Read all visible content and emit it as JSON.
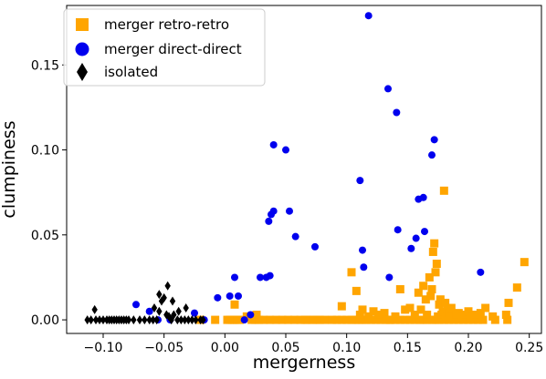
{
  "chart_data": {
    "type": "scatter",
    "xlabel": "mergerness",
    "ylabel": "clumpiness",
    "xlim": [
      -0.13,
      0.26
    ],
    "ylim": [
      -0.008,
      0.185
    ],
    "xticks": [
      -0.1,
      -0.05,
      0.0,
      0.05,
      0.1,
      0.15,
      0.2,
      0.25
    ],
    "xtick_labels": [
      "−0.10",
      "−0.05",
      "0.00",
      "0.05",
      "0.10",
      "0.15",
      "0.20",
      "0.25"
    ],
    "yticks": [
      0.0,
      0.05,
      0.1,
      0.15
    ],
    "ytick_labels": [
      "0.00",
      "0.05",
      "0.10",
      "0.15"
    ],
    "grid": false,
    "legend_position": "top-left",
    "series": [
      {
        "name": "merger retro-retro",
        "marker": "square",
        "color": "#ffa500",
        "points": [
          [
            -0.02,
            0.0
          ],
          [
            -0.008,
            0.0
          ],
          [
            0.002,
            0.0
          ],
          [
            0.004,
            0.0
          ],
          [
            0.006,
            0.0
          ],
          [
            0.008,
            0.0
          ],
          [
            0.01,
            0.0
          ],
          [
            0.012,
            0.0
          ],
          [
            0.018,
            0.002
          ],
          [
            0.022,
            0.0
          ],
          [
            0.025,
            0.0
          ],
          [
            0.028,
            0.0
          ],
          [
            0.032,
            0.0
          ],
          [
            0.037,
            0.0
          ],
          [
            0.042,
            0.0
          ],
          [
            0.047,
            0.0
          ],
          [
            0.052,
            0.0
          ],
          [
            0.057,
            0.0
          ],
          [
            0.062,
            0.0
          ],
          [
            0.068,
            0.0
          ],
          [
            0.072,
            0.0
          ],
          [
            0.075,
            0.0
          ],
          [
            0.078,
            0.0
          ],
          [
            0.082,
            0.0
          ],
          [
            0.088,
            0.0
          ],
          [
            0.092,
            0.0
          ],
          [
            0.096,
            0.0
          ],
          [
            0.1,
            0.0
          ],
          [
            0.104,
            0.0
          ],
          [
            0.107,
            0.0
          ],
          [
            0.11,
            0.0
          ],
          [
            0.113,
            0.0
          ],
          [
            0.116,
            0.0
          ],
          [
            0.12,
            0.0
          ],
          [
            0.124,
            0.0
          ],
          [
            0.128,
            0.0
          ],
          [
            0.132,
            0.0
          ],
          [
            0.136,
            0.0
          ],
          [
            0.14,
            0.0
          ],
          [
            0.144,
            0.0
          ],
          [
            0.148,
            0.0
          ],
          [
            0.152,
            0.0
          ],
          [
            0.156,
            0.0
          ],
          [
            0.16,
            0.0
          ],
          [
            0.163,
            0.0
          ],
          [
            0.166,
            0.0
          ],
          [
            0.17,
            0.0
          ],
          [
            0.173,
            0.0
          ],
          [
            0.176,
            0.0
          ],
          [
            0.18,
            0.0
          ],
          [
            0.184,
            0.0
          ],
          [
            0.188,
            0.0
          ],
          [
            0.192,
            0.0
          ],
          [
            0.196,
            0.0
          ],
          [
            0.2,
            0.0
          ],
          [
            0.204,
            0.0
          ],
          [
            0.208,
            0.0
          ],
          [
            0.212,
            0.0
          ],
          [
            0.222,
            0.0
          ],
          [
            0.232,
            0.0
          ],
          [
            0.008,
            0.009
          ],
          [
            0.026,
            0.003
          ],
          [
            0.066,
            0.0
          ],
          [
            0.096,
            0.008
          ],
          [
            0.104,
            0.028
          ],
          [
            0.108,
            0.017
          ],
          [
            0.111,
            0.003
          ],
          [
            0.113,
            0.006
          ],
          [
            0.118,
            0.002
          ],
          [
            0.122,
            0.005
          ],
          [
            0.126,
            0.003
          ],
          [
            0.131,
            0.004
          ],
          [
            0.135,
            0.0
          ],
          [
            0.14,
            0.002
          ],
          [
            0.144,
            0.018
          ],
          [
            0.148,
            0.006
          ],
          [
            0.152,
            0.007
          ],
          [
            0.156,
            0.003
          ],
          [
            0.159,
            0.016
          ],
          [
            0.161,
            0.006
          ],
          [
            0.163,
            0.02
          ],
          [
            0.165,
            0.012
          ],
          [
            0.166,
            0.003
          ],
          [
            0.168,
            0.025
          ],
          [
            0.169,
            0.014
          ],
          [
            0.17,
            0.018
          ],
          [
            0.171,
            0.04
          ],
          [
            0.172,
            0.045
          ],
          [
            0.173,
            0.028
          ],
          [
            0.174,
            0.033
          ],
          [
            0.175,
            0.002
          ],
          [
            0.176,
            0.009
          ],
          [
            0.177,
            0.012
          ],
          [
            0.178,
            0.003
          ],
          [
            0.179,
            0.005
          ],
          [
            0.18,
            0.076
          ],
          [
            0.181,
            0.01
          ],
          [
            0.182,
            0.002
          ],
          [
            0.183,
            0.006
          ],
          [
            0.184,
            0.004
          ],
          [
            0.186,
            0.007
          ],
          [
            0.188,
            0.002
          ],
          [
            0.19,
            0.003
          ],
          [
            0.192,
            0.004
          ],
          [
            0.195,
            0.002
          ],
          [
            0.198,
            0.003
          ],
          [
            0.2,
            0.005
          ],
          [
            0.203,
            0.002
          ],
          [
            0.206,
            0.003
          ],
          [
            0.21,
            0.004
          ],
          [
            0.214,
            0.007
          ],
          [
            0.22,
            0.002
          ],
          [
            0.231,
            0.003
          ],
          [
            0.233,
            0.01
          ],
          [
            0.24,
            0.019
          ],
          [
            0.246,
            0.034
          ]
        ]
      },
      {
        "name": "merger direct-direct",
        "marker": "circle",
        "color": "#0000ee",
        "points": [
          [
            -0.073,
            0.009
          ],
          [
            -0.062,
            0.005
          ],
          [
            -0.055,
            0.0
          ],
          [
            -0.045,
            0.0
          ],
          [
            -0.025,
            0.004
          ],
          [
            -0.017,
            0.0
          ],
          [
            -0.006,
            0.013
          ],
          [
            0.004,
            0.014
          ],
          [
            0.008,
            0.025
          ],
          [
            0.011,
            0.014
          ],
          [
            0.016,
            0.0
          ],
          [
            0.021,
            0.003
          ],
          [
            0.029,
            0.025
          ],
          [
            0.034,
            0.025
          ],
          [
            0.037,
            0.026
          ],
          [
            0.036,
            0.058
          ],
          [
            0.038,
            0.062
          ],
          [
            0.04,
            0.103
          ],
          [
            0.04,
            0.064
          ],
          [
            0.05,
            0.1
          ],
          [
            0.053,
            0.064
          ],
          [
            0.058,
            0.049
          ],
          [
            0.074,
            0.043
          ],
          [
            0.111,
            0.082
          ],
          [
            0.113,
            0.041
          ],
          [
            0.114,
            0.031
          ],
          [
            0.118,
            0.179
          ],
          [
            0.134,
            0.136
          ],
          [
            0.135,
            0.025
          ],
          [
            0.141,
            0.122
          ],
          [
            0.142,
            0.053
          ],
          [
            0.153,
            0.042
          ],
          [
            0.157,
            0.048
          ],
          [
            0.159,
            0.071
          ],
          [
            0.163,
            0.072
          ],
          [
            0.164,
            0.052
          ],
          [
            0.17,
            0.097
          ],
          [
            0.172,
            0.106
          ],
          [
            0.21,
            0.028
          ]
        ]
      },
      {
        "name": "isolated",
        "marker": "diamond",
        "color": "#000000",
        "points": [
          [
            -0.113,
            0.0
          ],
          [
            -0.11,
            0.0
          ],
          [
            -0.107,
            0.006
          ],
          [
            -0.106,
            0.0
          ],
          [
            -0.103,
            0.0
          ],
          [
            -0.1,
            0.0
          ],
          [
            -0.097,
            0.0
          ],
          [
            -0.095,
            0.0
          ],
          [
            -0.093,
            0.0
          ],
          [
            -0.091,
            0.0
          ],
          [
            -0.089,
            0.0
          ],
          [
            -0.087,
            0.0
          ],
          [
            -0.085,
            0.0
          ],
          [
            -0.083,
            0.0
          ],
          [
            -0.081,
            0.0
          ],
          [
            -0.079,
            0.0
          ],
          [
            -0.075,
            0.0
          ],
          [
            -0.07,
            0.0
          ],
          [
            -0.066,
            0.0
          ],
          [
            -0.062,
            0.0
          ],
          [
            -0.059,
            0.0
          ],
          [
            -0.056,
            0.0
          ],
          [
            -0.054,
            0.005
          ],
          [
            -0.052,
            0.011
          ],
          [
            -0.05,
            0.013
          ],
          [
            -0.048,
            0.003
          ],
          [
            -0.046,
            0.002
          ],
          [
            -0.044,
            0.0
          ],
          [
            -0.042,
            0.003
          ],
          [
            -0.039,
            0.0
          ],
          [
            -0.036,
            0.0
          ],
          [
            -0.033,
            0.0
          ],
          [
            -0.03,
            0.0
          ],
          [
            -0.027,
            0.0
          ],
          [
            -0.024,
            0.0
          ],
          [
            -0.02,
            0.0
          ],
          [
            -0.018,
            0.0
          ],
          [
            -0.058,
            0.007
          ],
          [
            -0.054,
            0.015
          ],
          [
            -0.047,
            0.02
          ],
          [
            -0.043,
            0.011
          ],
          [
            -0.038,
            0.005
          ],
          [
            -0.032,
            0.007
          ]
        ]
      }
    ]
  }
}
